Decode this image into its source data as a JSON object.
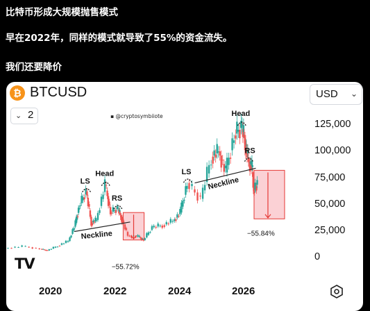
{
  "post": {
    "line1": "比特币形成大规模抛售模式",
    "line2": "早在2022年，同样的模式就导致了55%的资金流失。",
    "line3": "我们还要降价"
  },
  "chart_card": {
    "coin_icon": "bitcoin-logo-icon",
    "coin_glyph": "₿",
    "symbol": "BTCUSD",
    "currency": "USD",
    "interval": "2",
    "watermark": "@cryptosymbiiote",
    "tv_logo": "TV",
    "settings_icon": "hexagon-settings-icon"
  },
  "chart_data": {
    "type": "line",
    "title": "BTCUSD",
    "x_ticks": [
      "2020",
      "2022",
      "2024",
      "2026"
    ],
    "y_ticks": [
      "125,000",
      "100,000",
      "75,000",
      "50,000",
      "25,000",
      "0"
    ],
    "ylim": [
      0,
      135000
    ],
    "colors": {
      "up": "#26a69a",
      "down": "#ef5350",
      "box": "#fbd1d5",
      "arrow": "#e53935"
    },
    "series": [
      {
        "values": [
          {
            "x": 2019.0,
            "y": 8000
          },
          {
            "x": 2019.5,
            "y": 10000
          },
          {
            "x": 2020.0,
            "y": 7500
          },
          {
            "x": 2020.2,
            "y": 6000
          },
          {
            "x": 2020.5,
            "y": 10500
          },
          {
            "x": 2020.8,
            "y": 15000
          },
          {
            "x": 2021.0,
            "y": 32000
          },
          {
            "x": 2021.1,
            "y": 48000
          },
          {
            "x": 2021.3,
            "y": 62000
          },
          {
            "x": 2021.45,
            "y": 32000
          },
          {
            "x": 2021.6,
            "y": 35000
          },
          {
            "x": 2021.85,
            "y": 68000
          },
          {
            "x": 2022.0,
            "y": 42000
          },
          {
            "x": 2022.2,
            "y": 46000
          },
          {
            "x": 2022.3,
            "y": 38000
          },
          {
            "x": 2022.5,
            "y": 20000
          },
          {
            "x": 2022.8,
            "y": 19000
          },
          {
            "x": 2022.95,
            "y": 16000
          },
          {
            "x": 2023.2,
            "y": 28000
          },
          {
            "x": 2023.5,
            "y": 30000
          },
          {
            "x": 2023.8,
            "y": 34000
          },
          {
            "x": 2024.0,
            "y": 42000
          },
          {
            "x": 2024.2,
            "y": 70000
          },
          {
            "x": 2024.6,
            "y": 55000
          },
          {
            "x": 2024.9,
            "y": 95000
          },
          {
            "x": 2025.1,
            "y": 100000
          },
          {
            "x": 2025.3,
            "y": 80000
          },
          {
            "x": 2025.55,
            "y": 115000
          },
          {
            "x": 2025.75,
            "y": 124000
          },
          {
            "x": 2025.85,
            "y": 110000
          },
          {
            "x": 2025.95,
            "y": 90000
          },
          {
            "x": 2026.05,
            "y": 85000
          },
          {
            "x": 2026.1,
            "y": 62000
          },
          {
            "x": 2026.2,
            "y": 70000
          }
        ]
      }
    ],
    "annotations": {
      "pattern1": {
        "ls": "LS",
        "head": "Head",
        "rs": "RS",
        "neckline": "Neckline",
        "drop": "−55.72%"
      },
      "pattern2": {
        "ls": "LS",
        "head": "Head",
        "rs": "RS",
        "neckline": "Neckline",
        "drop": "−55.84%"
      }
    }
  }
}
